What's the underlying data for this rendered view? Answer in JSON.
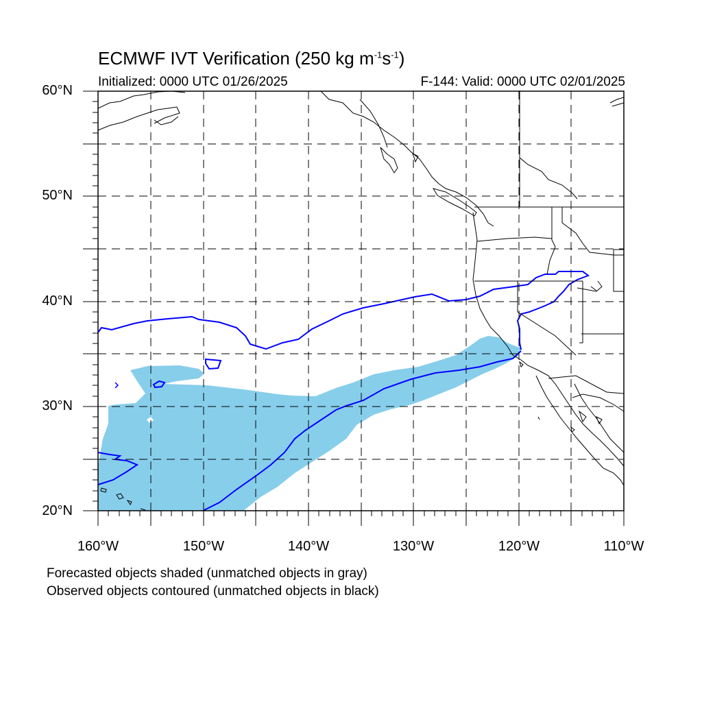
{
  "title": {
    "prefix": "ECMWF IVT Verification (250 kg m",
    "sup1": "-1",
    "mid": "s",
    "sup2": "-1",
    "suffix": ")"
  },
  "initialized": "Initialized: 0000 UTC 01/26/2025",
  "valid": "F-144: Valid: 0000 UTC 02/01/2025",
  "lat_labels": [
    "60°N",
    "50°N",
    "40°N",
    "30°N",
    "20°N"
  ],
  "lon_labels": [
    "160°W",
    "150°W",
    "140°W",
    "130°W",
    "120°W",
    "110°W"
  ],
  "notes": {
    "line1": "Forecasted objects shaded (unmatched objects in gray)",
    "line2": "Observed objects contoured (unmatched objects in black)"
  },
  "colors": {
    "forecast_fill": "#87ceeb",
    "observed_contour": "#0000ff",
    "coastline": "#000000",
    "grid": "#000000"
  },
  "map_extent": {
    "lon_min": -160,
    "lon_max": -110,
    "lat_min": 20,
    "lat_max": 60
  }
}
